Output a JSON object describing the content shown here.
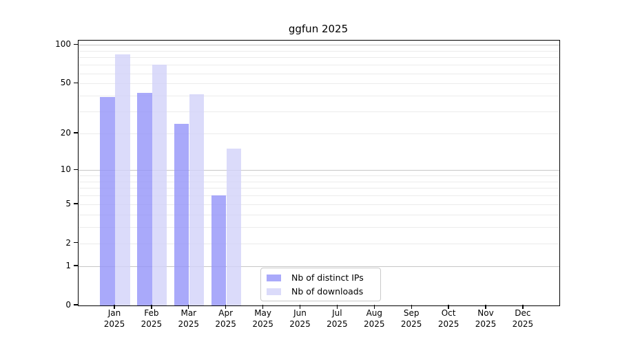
{
  "title": "ggfun 2025",
  "legend": {
    "items": [
      {
        "label": "Nb of distinct IPs"
      },
      {
        "label": "Nb of downloads"
      }
    ]
  },
  "chart_data": {
    "type": "bar",
    "title": "ggfun 2025",
    "categories": [
      "Jan",
      "Feb",
      "Mar",
      "Apr",
      "May",
      "Jun",
      "Jul",
      "Aug",
      "Sep",
      "Oct",
      "Nov",
      "Dec"
    ],
    "year_label": "2025",
    "series": [
      {
        "name": "Nb of distinct IPs",
        "color": "#9494f9",
        "alpha": 0.8,
        "values": [
          39,
          42,
          24,
          6,
          null,
          null,
          null,
          null,
          null,
          null,
          null,
          null
        ]
      },
      {
        "name": "Nb of downloads",
        "color": "#d2d2f9",
        "alpha": 0.8,
        "values": [
          84,
          70,
          41,
          15,
          null,
          null,
          null,
          null,
          null,
          null,
          null,
          null
        ]
      }
    ],
    "y_axis": {
      "scale": "log10(1+x)",
      "ticks": [
        {
          "value": 0,
          "label": "0"
        },
        {
          "value": 1,
          "label": "1"
        },
        {
          "value": 2,
          "label": "2"
        },
        {
          "value": 5,
          "label": "5"
        },
        {
          "value": 10,
          "label": "10"
        },
        {
          "value": 20,
          "label": "20"
        },
        {
          "value": 50,
          "label": "50"
        },
        {
          "value": 100,
          "label": "100"
        }
      ],
      "max": 108,
      "major_gridlines": [
        1,
        10,
        100
      ],
      "minor_gridlines": [
        2,
        3,
        4,
        5,
        6,
        7,
        8,
        9,
        20,
        30,
        40,
        50,
        60,
        70,
        80,
        90
      ],
      "major_grid_color": "#c6c6c6",
      "minor_grid_color": "#ebebeb"
    },
    "grid": true,
    "legend_position": "lower center-left inside plot"
  }
}
